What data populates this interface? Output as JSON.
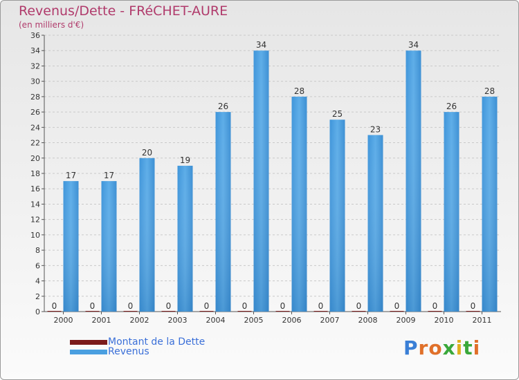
{
  "title": "Revenus/Dette - FRéCHET-AURE",
  "subtitle": "(en milliers d'€)",
  "legend": {
    "debt_label": "Montant de la Dette",
    "revenue_label": "Revenus"
  },
  "brand": "Proxiti",
  "colors": {
    "revenue": "#4a9fe0",
    "debt": "#7a1a1a",
    "legend_text": "#3a6fd8",
    "title": "#b03a6b"
  },
  "chart_data": {
    "type": "bar",
    "title": "Revenus/Dette - FRéCHET-AURE",
    "ylabel": "(en milliers d'€)",
    "categories": [
      "2000",
      "2001",
      "2002",
      "2003",
      "2004",
      "2005",
      "2006",
      "2007",
      "2008",
      "2009",
      "2010",
      "2011"
    ],
    "series": [
      {
        "name": "Montant de la Dette",
        "values": [
          0,
          0,
          0,
          0,
          0,
          0,
          0,
          0,
          0,
          0,
          0,
          0
        ]
      },
      {
        "name": "Revenus",
        "values": [
          17,
          17,
          20,
          19,
          26,
          34,
          28,
          25,
          23,
          34,
          26,
          28
        ]
      }
    ],
    "ylim": [
      0,
      36
    ],
    "yticks": [
      0,
      2,
      4,
      6,
      8,
      10,
      12,
      14,
      16,
      18,
      20,
      22,
      24,
      26,
      28,
      30,
      32,
      34,
      36
    ],
    "grid": true,
    "legend": "bottom-left"
  }
}
